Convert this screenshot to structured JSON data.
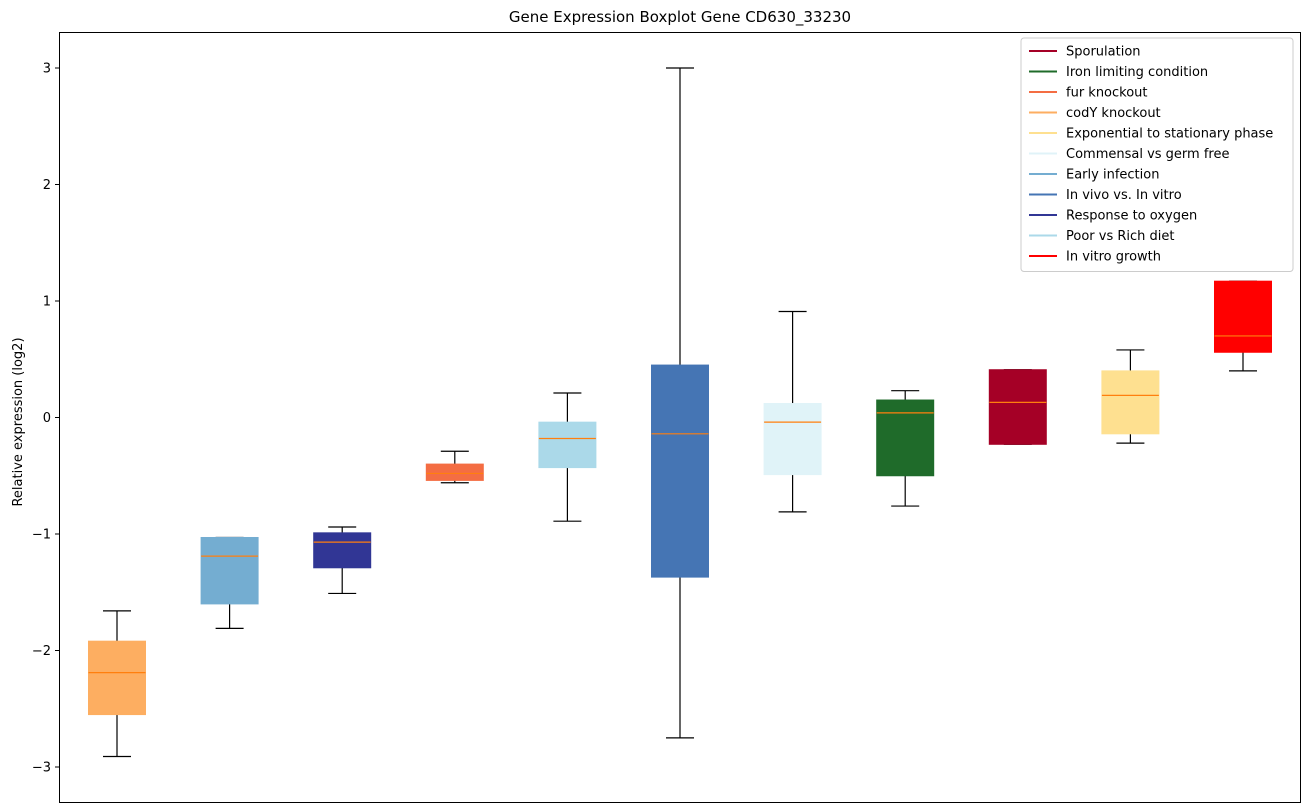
{
  "chart_data": {
    "type": "boxplot",
    "title": "Gene Expression Boxplot Gene CD630_33230",
    "xlabel": "",
    "ylabel": "Relative expression (log2)",
    "ylim": [
      -3.3,
      3.3
    ],
    "yticks": [
      -3,
      -2,
      -1,
      0,
      1,
      2,
      3
    ],
    "ytick_labels": [
      "−3",
      "−2",
      "−1",
      "0",
      "1",
      "2",
      "3"
    ],
    "grid": false,
    "legend_position": "top-right",
    "median_color": "#ff7f0e",
    "boxes": [
      {
        "name": "codY knockout",
        "color": "#fdae61",
        "whisker_low": -2.91,
        "q1": -2.55,
        "median": -2.19,
        "q3": -1.92,
        "whisker_high": -1.66
      },
      {
        "name": "Early infection",
        "color": "#74add1",
        "whisker_low": -1.81,
        "q1": -1.6,
        "median": -1.19,
        "q3": -1.03,
        "whisker_high": -1.03
      },
      {
        "name": "Response to oxygen",
        "color": "#313695",
        "whisker_low": -1.51,
        "q1": -1.29,
        "median": -1.07,
        "q3": -0.99,
        "whisker_high": -0.94
      },
      {
        "name": "fur knockout",
        "color": "#f46d43",
        "whisker_low": -0.56,
        "q1": -0.54,
        "median": -0.48,
        "q3": -0.4,
        "whisker_high": -0.29
      },
      {
        "name": "Poor vs Rich diet",
        "color": "#abd9e9",
        "whisker_low": -0.89,
        "q1": -0.43,
        "median": -0.18,
        "q3": -0.04,
        "whisker_high": 0.21
      },
      {
        "name": "In vivo vs. In vitro",
        "color": "#4575b4",
        "whisker_low": -2.75,
        "q1": -1.37,
        "median": -0.14,
        "q3": 0.45,
        "whisker_high": 3.0
      },
      {
        "name": "Commensal vs germ free",
        "color": "#e0f3f8",
        "whisker_low": -0.81,
        "q1": -0.49,
        "median": -0.04,
        "q3": 0.12,
        "whisker_high": 0.91
      },
      {
        "name": "Iron limiting condition",
        "color": "#1f6b2a",
        "whisker_low": -0.76,
        "q1": -0.5,
        "median": 0.04,
        "q3": 0.15,
        "whisker_high": 0.23
      },
      {
        "name": "Sporulation",
        "color": "#a50026",
        "whisker_low": -0.23,
        "q1": -0.23,
        "median": 0.13,
        "q3": 0.41,
        "whisker_high": 0.41
      },
      {
        "name": "Exponential to stationary phase",
        "color": "#fee090",
        "whisker_low": -0.22,
        "q1": -0.14,
        "median": 0.19,
        "q3": 0.4,
        "whisker_high": 0.58
      },
      {
        "name": "In vitro growth",
        "color": "#ff0000",
        "whisker_low": 0.4,
        "q1": 0.56,
        "median": 0.7,
        "q3": 1.17,
        "whisker_high": 1.17
      }
    ],
    "legend": [
      {
        "label": "Sporulation",
        "color": "#a50026"
      },
      {
        "label": "Iron limiting condition",
        "color": "#1f6b2a"
      },
      {
        "label": "fur knockout",
        "color": "#f46d43"
      },
      {
        "label": "codY knockout",
        "color": "#fdae61"
      },
      {
        "label": "Exponential to stationary phase",
        "color": "#fee090"
      },
      {
        "label": "Commensal vs germ free",
        "color": "#e0f3f8"
      },
      {
        "label": "Early infection",
        "color": "#74add1"
      },
      {
        "label": "In vivo vs. In vitro",
        "color": "#4575b4"
      },
      {
        "label": "Response to oxygen",
        "color": "#313695"
      },
      {
        "label": "Poor vs Rich diet",
        "color": "#abd9e9"
      },
      {
        "label": "In vitro growth",
        "color": "#ff0000"
      }
    ]
  }
}
